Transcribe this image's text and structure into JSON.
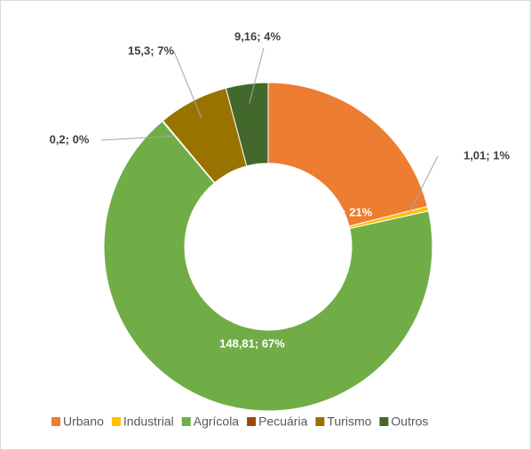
{
  "chart_data": {
    "type": "donut",
    "categories": [
      "Urbano",
      "Industrial",
      "Agrícola",
      "Pecuária",
      "Turismo",
      "Outros"
    ],
    "values": [
      46.52,
      1.01,
      148.81,
      0.2,
      15.3,
      9.16
    ],
    "value_labels": [
      "46,52; 21%",
      "1,01; 1%",
      "148,81; 67%",
      "0,2; 0%",
      "15,3; 7%",
      "9,16; 4%"
    ],
    "colors": [
      "#ED7D31",
      "#FFC000",
      "#70AD47",
      "#9E480E",
      "#997300",
      "#43682B"
    ],
    "legend": "bottom"
  }
}
